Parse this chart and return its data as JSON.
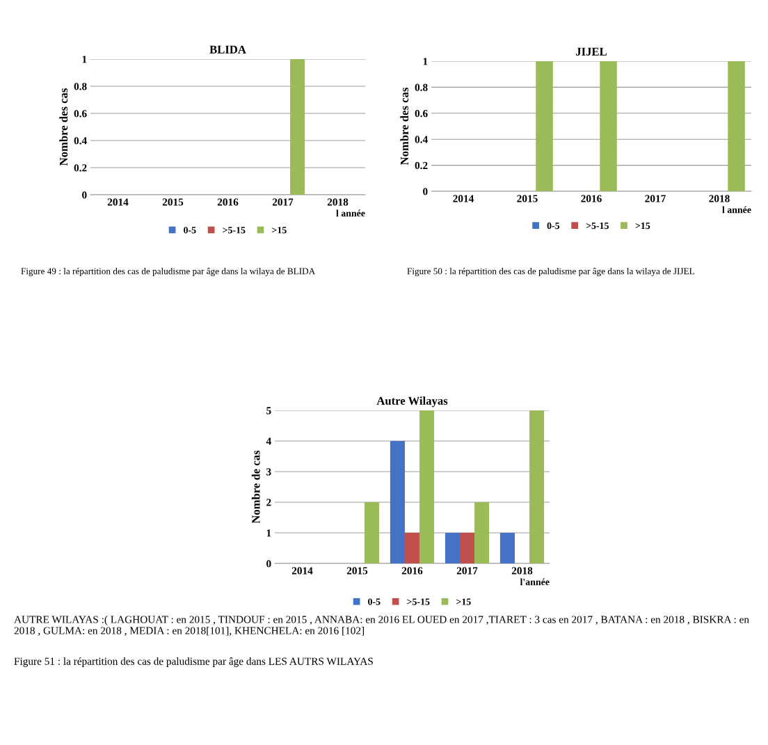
{
  "chart_data": [
    {
      "type": "bar",
      "title": "BLIDA",
      "xlabel": "l année",
      "ylabel": "Nombre des cas",
      "categories": [
        "2014",
        "2015",
        "2016",
        "2017",
        "2018"
      ],
      "series": [
        {
          "name": "0-5",
          "color": "#4472c4",
          "values": [
            0,
            0,
            0,
            0,
            0
          ]
        },
        {
          "name": ">5-15",
          "color": "#c0504d",
          "values": [
            0,
            0,
            0,
            0,
            0
          ]
        },
        {
          "name": ">15",
          "color": "#9bbb59",
          "values": [
            0,
            0,
            0,
            1,
            0
          ]
        }
      ],
      "ylim": [
        0,
        1
      ],
      "yticks": [
        0,
        0.2,
        0.4,
        0.6,
        0.8,
        1
      ],
      "grid": "y",
      "legend": "bottom",
      "annotations": [
        "Figure 49 : la répartition des cas de paludisme par âge dans la wilaya de BLIDA"
      ]
    },
    {
      "type": "bar",
      "title": "JIJEL",
      "xlabel": "l année",
      "ylabel": "Nombre des cas",
      "categories": [
        "2014",
        "2015",
        "2016",
        "2017",
        "2018"
      ],
      "series": [
        {
          "name": "0-5",
          "color": "#4472c4",
          "values": [
            null,
            0,
            0,
            0,
            0
          ]
        },
        {
          "name": ">5-15",
          "color": "#c0504d",
          "values": [
            null,
            0,
            0,
            0,
            0
          ]
        },
        {
          "name": ">15",
          "color": "#9bbb59",
          "values": [
            null,
            1,
            1,
            0,
            1
          ]
        }
      ],
      "ylim": [
        0,
        1
      ],
      "yticks": [
        0,
        0.2,
        0.4,
        0.6,
        0.8,
        1
      ],
      "grid": "y",
      "legend": "bottom",
      "annotations": [
        "Figure 50 : la répartition des cas de paludisme par âge dans la wilaya de JIJEL"
      ]
    },
    {
      "type": "bar",
      "title": "Autre Wilayas",
      "xlabel": "l'année",
      "ylabel": "Nombre de cas",
      "categories": [
        "2014",
        "2015",
        "2016",
        "2017",
        "2018"
      ],
      "series": [
        {
          "name": "0-5",
          "color": "#4472c4",
          "values": [
            0,
            0,
            4,
            1,
            1
          ]
        },
        {
          "name": ">5-15",
          "color": "#c0504d",
          "values": [
            0,
            0,
            1,
            1,
            0
          ]
        },
        {
          "name": ">15",
          "color": "#9bbb59",
          "values": [
            0,
            2,
            5,
            2,
            5
          ]
        }
      ],
      "ylim": [
        0,
        5
      ],
      "yticks": [
        0,
        1,
        2,
        3,
        4,
        5
      ],
      "grid": "y",
      "legend": "bottom",
      "annotations": [
        "AUTRE WILAYAS :( LAGHOUAT : en 2015 , TINDOUF : en 2015 , ANNABA: en 2016 EL OUED en 2017 ,TIARET : 3 cas en 2017 , BATANA : en 2018 , BISKRA : en 2018 , GULMA: en 2018 , MEDIA : en 2018[101], KHENCHELA: en 2016 [102]",
        "Figure 51 : la répartition des cas de paludisme par âge dans LES AUTRS WILAYAS"
      ]
    }
  ]
}
